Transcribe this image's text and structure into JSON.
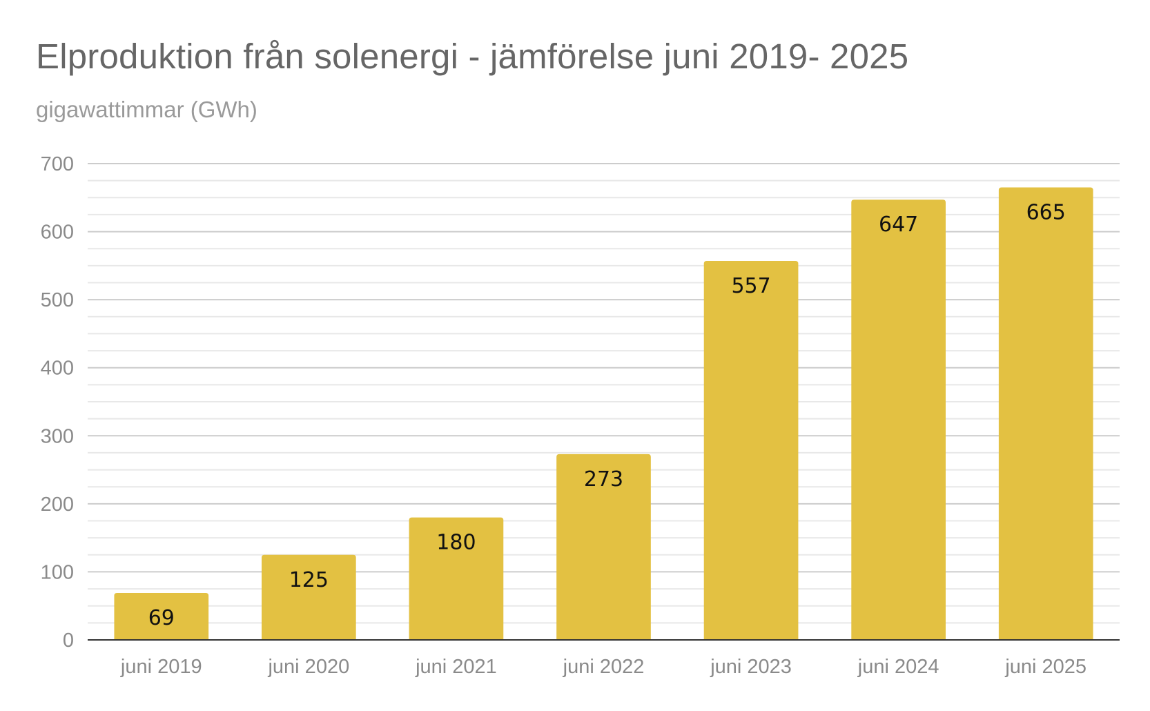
{
  "chart_data": {
    "type": "bar",
    "title": "Elproduktion från solenergi - jämförelse juni 2019- 2025",
    "subtitle": "gigawattimmar (GWh)",
    "categories": [
      "juni 2019",
      "juni 2020",
      "juni 2021",
      "juni 2022",
      "juni 2023",
      "juni 2024",
      "juni 2025"
    ],
    "values": [
      69,
      125,
      180,
      273,
      557,
      647,
      665
    ],
    "data_labels": [
      "69",
      "125",
      "180",
      "273",
      "557",
      "647",
      "665"
    ],
    "ylim": [
      0,
      700
    ],
    "yticks": [
      0,
      100,
      200,
      300,
      400,
      500,
      600,
      700
    ],
    "ytick_labels": [
      "0",
      "100",
      "200",
      "300",
      "400",
      "500",
      "600",
      "700"
    ],
    "grid": true,
    "minor_grid": true,
    "legend": "none",
    "colors": {
      "bar": "#E3C142",
      "grid_major": "#cccccc",
      "grid_minor": "#e8e8e8",
      "axis": "#333333"
    }
  }
}
